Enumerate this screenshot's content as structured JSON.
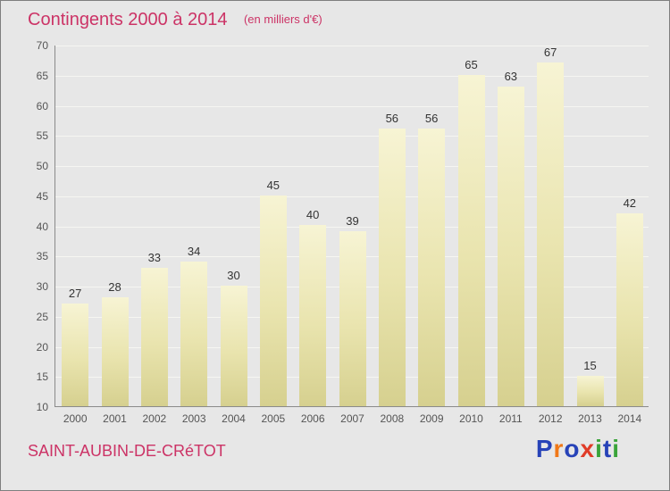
{
  "title": "Contingents 2000 à 2014",
  "subtitle": "(en milliers d'€)",
  "footer": {
    "place": "SAINT-AUBIN-DE-CRéTOT"
  },
  "logo": {
    "letters": [
      {
        "char": "P",
        "color": "#2743b8"
      },
      {
        "char": "r",
        "color": "#f07818"
      },
      {
        "char": "o",
        "color": "#2743b8"
      },
      {
        "char": "x",
        "color": "#e03c28"
      },
      {
        "char": "i",
        "color": "#3aa43a"
      },
      {
        "char": "t",
        "color": "#2743b8"
      },
      {
        "char": "i",
        "color": "#3aa43a"
      }
    ]
  },
  "chart_data": {
    "type": "bar",
    "title": "Contingents 2000 à 2014",
    "subtitle": "(en milliers d'€)",
    "categories": [
      "2000",
      "2001",
      "2002",
      "2003",
      "2004",
      "2005",
      "2006",
      "2007",
      "2008",
      "2009",
      "2010",
      "2011",
      "2012",
      "2013",
      "2014"
    ],
    "values": [
      27,
      28,
      33,
      34,
      30,
      45,
      40,
      39,
      56,
      56,
      65,
      63,
      67,
      15,
      42
    ],
    "xlabel": "",
    "ylabel": "",
    "ylim": [
      10,
      70
    ],
    "yticks": [
      10,
      15,
      20,
      25,
      30,
      35,
      40,
      45,
      50,
      55,
      60,
      65,
      70
    ],
    "grid": true,
    "legend": "none",
    "bar_color_top": "#f7f4d4",
    "bar_color_bottom": "#d6d08f",
    "background_color": "#e7e7e7",
    "title_color": "#cc3366"
  }
}
